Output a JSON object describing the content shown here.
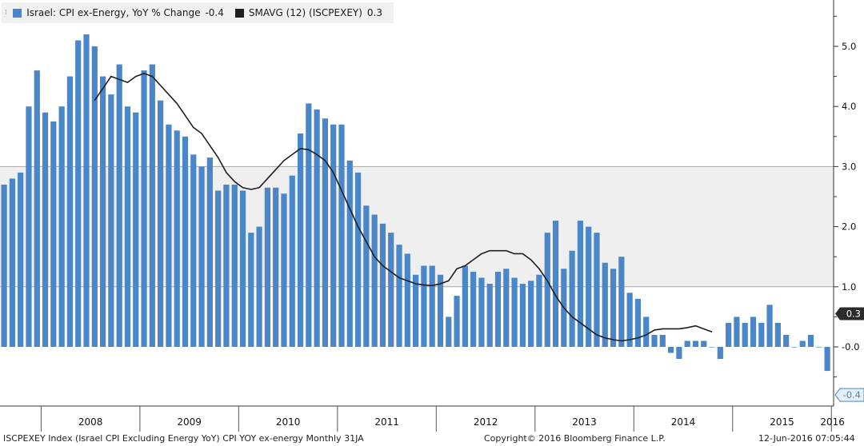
{
  "colors": {
    "bar": "#4a86c8",
    "line": "#1e1e1e",
    "band": "#efefef",
    "gridline": "#a8a8a8",
    "last_line_tag": "#2b2b2b",
    "last_bar_tag": "#4a86c8"
  },
  "legend": {
    "grip_icon": "⁞",
    "series_bar_label": "Israel: CPI ex-Energy, YoY % Change",
    "series_bar_last": "-0.4",
    "series_line_label": "SMAVG (12)  (ISCPEXEY)",
    "series_line_last": "0.3"
  },
  "footer": {
    "left": "ISCPEXEY Index (Israel CPI Excluding Energy YoY) CPI YOY ex-energy  Monthly 31JA",
    "center": "Copyright© 2016 Bloomberg Finance L.P.",
    "right": "12-Jun-2016 07:05:44"
  },
  "chart_data": {
    "type": "bar",
    "x_start": "2007-08",
    "x_end": "2016-05",
    "ylim": [
      -0.9,
      5.8
    ],
    "y_ticks": [
      "-0.0",
      "1.0",
      "2.0",
      "3.0",
      "4.0",
      "5.0"
    ],
    "y_tick_values": [
      0,
      1,
      2,
      3,
      4,
      5
    ],
    "shaded_band": [
      1.0,
      3.0
    ],
    "x_tick_labels": [
      "2008",
      "2009",
      "2010",
      "2011",
      "2012",
      "2013",
      "2014",
      "2015",
      "2016"
    ],
    "last_value_tags": [
      {
        "series": "SMAVG (12)  (ISCPEXEY)",
        "text": "0.3",
        "value": 0.3
      },
      {
        "series": "Israel: CPI ex-Energy, YoY % Change",
        "text": "-0.4",
        "value": -0.4
      }
    ],
    "series": [
      {
        "name": "Israel: CPI ex-Energy, YoY % Change",
        "type": "bar",
        "values": [
          2.7,
          2.8,
          2.9,
          4.0,
          4.6,
          3.9,
          3.75,
          4.0,
          4.5,
          5.1,
          5.2,
          5.0,
          4.5,
          4.2,
          4.7,
          4.0,
          3.9,
          4.6,
          4.7,
          4.1,
          3.7,
          3.6,
          3.5,
          3.2,
          3.0,
          3.15,
          2.6,
          2.7,
          2.7,
          2.6,
          1.9,
          2.0,
          2.65,
          2.65,
          2.55,
          2.85,
          3.55,
          4.05,
          3.95,
          3.8,
          3.7,
          3.7,
          3.1,
          2.9,
          2.35,
          2.2,
          2.05,
          1.9,
          1.7,
          1.55,
          1.2,
          1.35,
          1.35,
          1.2,
          0.5,
          0.85,
          1.35,
          1.25,
          1.15,
          1.05,
          1.25,
          1.3,
          1.15,
          1.05,
          1.1,
          1.2,
          1.9,
          2.1,
          1.3,
          1.6,
          2.1,
          2.0,
          1.9,
          1.4,
          1.3,
          1.5,
          0.9,
          0.8,
          0.5,
          0.2,
          0.2,
          -0.1,
          -0.2,
          0.1,
          0.1,
          0.1,
          0.0,
          -0.2,
          0.4,
          0.5,
          0.4,
          0.5,
          0.4,
          0.7,
          0.4,
          0.2,
          0.0,
          0.1,
          0.2,
          0.0,
          -0.4
        ]
      },
      {
        "name": "SMAVG (12)  (ISCPEXEY)",
        "type": "line",
        "start_index": 11,
        "values": [
          4.1,
          4.3,
          4.5,
          4.45,
          4.4,
          4.5,
          4.55,
          4.5,
          4.35,
          4.2,
          4.05,
          3.85,
          3.65,
          3.55,
          3.35,
          3.15,
          2.9,
          2.75,
          2.65,
          2.62,
          2.65,
          2.8,
          2.95,
          3.1,
          3.2,
          3.3,
          3.28,
          3.2,
          3.1,
          2.9,
          2.6,
          2.3,
          2.0,
          1.75,
          1.5,
          1.35,
          1.25,
          1.15,
          1.1,
          1.05,
          1.03,
          1.02,
          1.05,
          1.1,
          1.3,
          1.35,
          1.45,
          1.55,
          1.6,
          1.6,
          1.6,
          1.55,
          1.55,
          1.45,
          1.3,
          1.1,
          0.85,
          0.65,
          0.5,
          0.4,
          0.3,
          0.2,
          0.15,
          0.12,
          0.1,
          0.12,
          0.15,
          0.2,
          0.28,
          0.3,
          0.3,
          0.3,
          0.32,
          0.35,
          0.3,
          0.25
        ]
      }
    ]
  }
}
